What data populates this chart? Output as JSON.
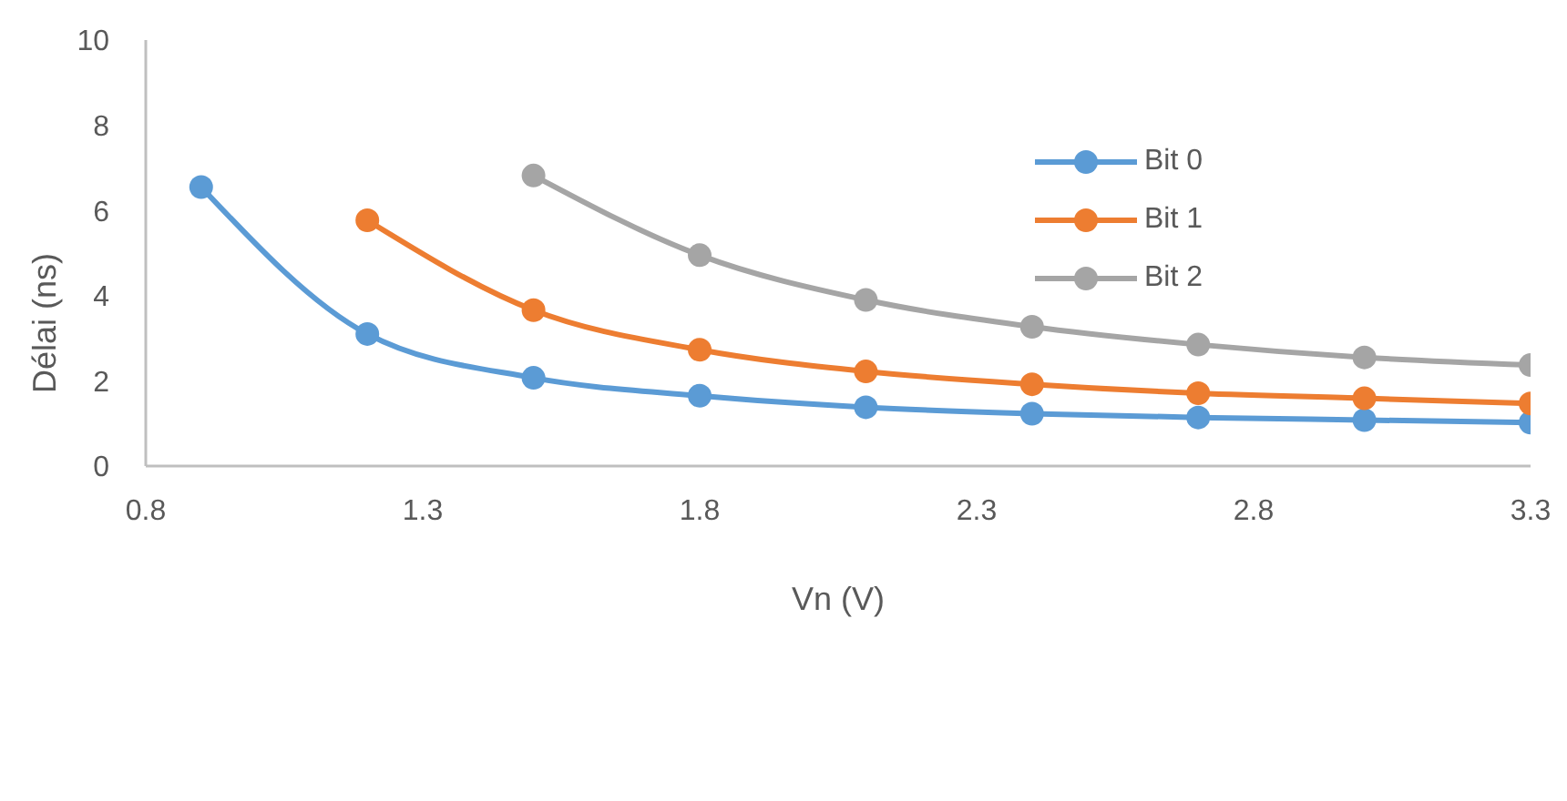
{
  "chart_data": {
    "type": "line",
    "xlabel": "Vn (V)",
    "ylabel": "Délai (ns)",
    "x": [
      0.9,
      1.2,
      1.5,
      1.8,
      2.1,
      2.4,
      2.7,
      3.0,
      3.3
    ],
    "series": [
      {
        "name": "Bit 0",
        "color": "#5b9bd5",
        "values": [
          6.55,
          3.1,
          2.07,
          1.65,
          1.38,
          1.23,
          1.14,
          1.08,
          1.02
        ]
      },
      {
        "name": "Bit 1",
        "color": "#ed7d31",
        "values": [
          null,
          5.77,
          3.66,
          2.73,
          2.22,
          1.92,
          1.71,
          1.59,
          1.47
        ]
      },
      {
        "name": "Bit 2",
        "color": "#a5a5a5",
        "values": [
          null,
          null,
          6.82,
          4.95,
          3.9,
          3.27,
          2.85,
          2.55,
          2.37
        ]
      }
    ],
    "xlim": [
      0.8,
      3.3
    ],
    "xticks": [
      0.8,
      1.3,
      1.8,
      2.3,
      2.8,
      3.3
    ],
    "ylim": [
      0,
      10
    ],
    "yticks": [
      0,
      2,
      4,
      6,
      8,
      10
    ],
    "grid": false,
    "legend": "top right",
    "marker": "circle",
    "line_style": "solid"
  }
}
